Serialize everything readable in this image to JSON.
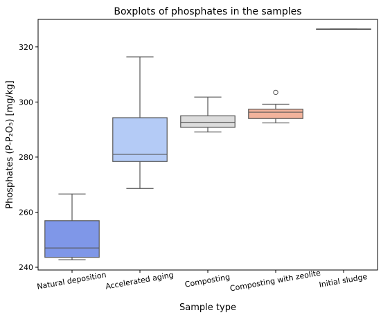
{
  "chart_data": {
    "type": "box",
    "title": "Boxplots of phosphates in the samples",
    "xlabel": "Sample type",
    "ylabel": "Phosphates (P-P₂O₅) [mg/kg]",
    "ylim": [
      239,
      330
    ],
    "yticks": [
      240,
      260,
      280,
      300,
      320
    ],
    "grid": false,
    "categories": [
      "Natural deposition",
      "Accelerated aging",
      "Composting",
      "Composting with zeolite",
      "Initial sludge"
    ],
    "boxes": [
      {
        "category": "Natural deposition",
        "whisker_low": 242.7,
        "q1": 243.6,
        "median": 247.0,
        "q3": 256.9,
        "whisker_high": 266.6,
        "outliers": [],
        "color": "#7f97e8"
      },
      {
        "category": "Accelerated aging",
        "whisker_low": 268.6,
        "q1": 278.4,
        "median": 281.0,
        "q3": 294.3,
        "whisker_high": 316.4,
        "outliers": [],
        "color": "#b4cbf6"
      },
      {
        "category": "Composting",
        "whisker_low": 289.1,
        "q1": 290.8,
        "median": 292.6,
        "q3": 295.0,
        "whisker_high": 301.8,
        "outliers": [],
        "color": "#dcdcdc"
      },
      {
        "category": "Composting with zeolite",
        "whisker_low": 292.4,
        "q1": 294.0,
        "median": 296.3,
        "q3": 297.4,
        "whisker_high": 299.2,
        "outliers": [
          303.5
        ],
        "color": "#f2b39c"
      },
      {
        "category": "Initial sludge",
        "whisker_low": 326.5,
        "q1": 326.5,
        "median": 326.5,
        "q3": 326.5,
        "whisker_high": 326.5,
        "outliers": [],
        "color": "#f09278"
      }
    ]
  }
}
